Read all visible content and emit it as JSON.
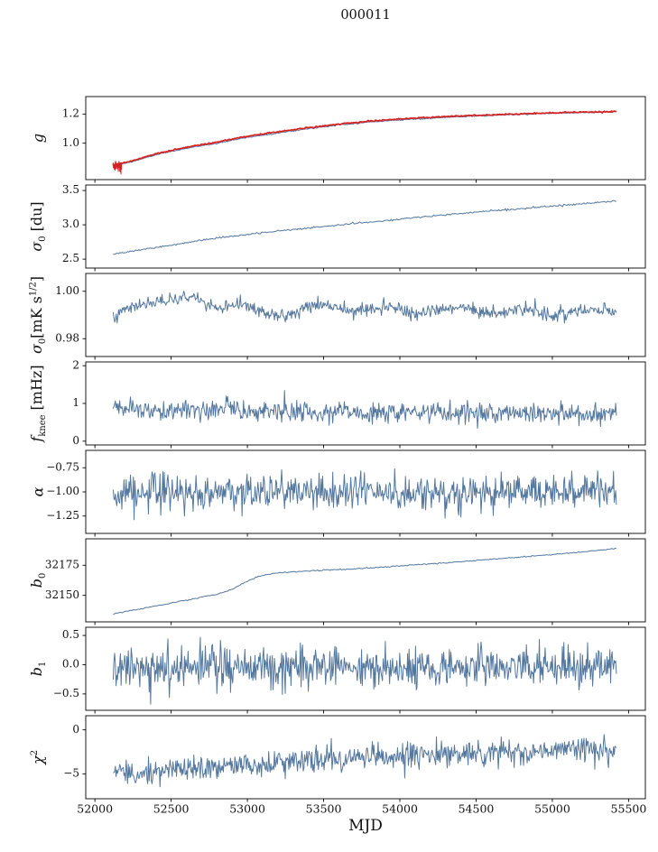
{
  "chart_data": {
    "type": "line",
    "title": "000011",
    "xlabel": "MJD",
    "line_color": "#54779e",
    "fit_color": "#d62222",
    "xlim": [
      51940,
      55610
    ],
    "x_range": [
      52120,
      55420
    ],
    "xticks": [
      {
        "v": 52000,
        "label": "52000"
      },
      {
        "v": 52500,
        "label": "52500"
      },
      {
        "v": 53000,
        "label": "53000"
      },
      {
        "v": 53500,
        "label": "53500"
      },
      {
        "v": 54000,
        "label": "54000"
      },
      {
        "v": 54500,
        "label": "54500"
      },
      {
        "v": 55000,
        "label": "55000"
      },
      {
        "v": 55500,
        "label": "55500"
      }
    ],
    "panels": [
      {
        "ylabel": "g",
        "ylabel_parts": [
          [
            "g",
            "i"
          ]
        ],
        "ylim": [
          0.75,
          1.32
        ],
        "yticks": [
          {
            "v": 1.0,
            "label": "1.0"
          },
          {
            "v": 1.2,
            "label": "1.2"
          }
        ],
        "series": [
          {
            "name": "gain",
            "color": "#54779e",
            "lw": 1,
            "n": 500,
            "noise": 0.002,
            "trend": [
              [
                52130,
                0.845
              ],
              [
                52250,
                0.875
              ],
              [
                52400,
                0.92
              ],
              [
                52600,
                0.965
              ],
              [
                52800,
                1.0
              ],
              [
                53000,
                1.04
              ],
              [
                53200,
                1.07
              ],
              [
                53400,
                1.1
              ],
              [
                53600,
                1.125
              ],
              [
                53800,
                1.145
              ],
              [
                54000,
                1.16
              ],
              [
                54200,
                1.172
              ],
              [
                54400,
                1.182
              ],
              [
                54600,
                1.19
              ],
              [
                54800,
                1.198
              ],
              [
                55000,
                1.205
              ],
              [
                55200,
                1.21
              ],
              [
                55420,
                1.215
              ]
            ]
          },
          {
            "name": "gain-fit",
            "color": "#d62222",
            "lw": 1.7,
            "n": 500,
            "noise": 0.0022,
            "trend": [
              [
                52130,
                0.85
              ],
              [
                52250,
                0.882
              ],
              [
                52400,
                0.928
              ],
              [
                52600,
                0.972
              ],
              [
                52800,
                1.008
              ],
              [
                53000,
                1.048
              ],
              [
                53200,
                1.078
              ],
              [
                53400,
                1.107
              ],
              [
                53600,
                1.131
              ],
              [
                53800,
                1.151
              ],
              [
                54000,
                1.166
              ],
              [
                54200,
                1.178
              ],
              [
                54400,
                1.187
              ],
              [
                54600,
                1.195
              ],
              [
                54800,
                1.202
              ],
              [
                55000,
                1.208
              ],
              [
                55200,
                1.213
              ],
              [
                55420,
                1.218
              ]
            ]
          },
          {
            "name": "gain-start-scatter",
            "color": "#d62222",
            "lw": 1,
            "n": 70,
            "noise": 0.02,
            "x_range": [
              52118,
              52175
            ],
            "trend": [
              [
                52118,
                0.845
              ],
              [
                52175,
                0.845
              ]
            ]
          }
        ]
      },
      {
        "ylabel": "σ₀ [du]",
        "ylabel_parts": [
          [
            "σ",
            "i"
          ],
          [
            "0",
            "sub"
          ],
          [
            " [du]",
            "n"
          ]
        ],
        "ylim": [
          2.37,
          3.58
        ],
        "yticks": [
          {
            "v": 2.5,
            "label": "2.5"
          },
          {
            "v": 3.0,
            "label": "3.0"
          },
          {
            "v": 3.5,
            "label": "3.5"
          }
        ],
        "series": [
          {
            "name": "sigma0-du",
            "color": "#54779e",
            "lw": 1,
            "n": 450,
            "noise": 0.006,
            "trend": [
              [
                52130,
                2.575
              ],
              [
                52300,
                2.635
              ],
              [
                52500,
                2.705
              ],
              [
                52700,
                2.775
              ],
              [
                52900,
                2.835
              ],
              [
                53100,
                2.885
              ],
              [
                53300,
                2.93
              ],
              [
                53500,
                2.975
              ],
              [
                53700,
                3.02
              ],
              [
                53900,
                3.06
              ],
              [
                54100,
                3.105
              ],
              [
                54300,
                3.145
              ],
              [
                54500,
                3.185
              ],
              [
                54700,
                3.22
              ],
              [
                54900,
                3.255
              ],
              [
                55100,
                3.29
              ],
              [
                55300,
                3.325
              ],
              [
                55420,
                3.345
              ]
            ]
          }
        ]
      },
      {
        "ylabel": "σ₀ [mK s¹⁄²]",
        "ylabel_parts": [
          [
            "σ",
            "i"
          ],
          [
            "0",
            "sub"
          ],
          [
            "[mK s",
            "n"
          ],
          [
            "1/2",
            "sup"
          ],
          [
            "]",
            "n"
          ]
        ],
        "ylim": [
          0.9725,
          1.0075
        ],
        "yticks": [
          {
            "v": 0.98,
            "label": "0.98"
          },
          {
            "v": 1.0,
            "label": "1.00"
          }
        ],
        "series": [
          {
            "name": "sigma0-mk",
            "color": "#54779e",
            "lw": 1,
            "n": 650,
            "noise": 0.0014,
            "trend": [
              [
                52130,
                0.9895
              ],
              [
                52250,
                0.9935
              ],
              [
                52420,
                0.995
              ],
              [
                52600,
                0.998
              ],
              [
                52700,
                0.9955
              ],
              [
                52780,
                0.9925
              ],
              [
                52900,
                0.9935
              ],
              [
                53000,
                0.9945
              ],
              [
                53120,
                0.9905
              ],
              [
                53250,
                0.99
              ],
              [
                53400,
                0.9935
              ],
              [
                53520,
                0.9945
              ],
              [
                53650,
                0.9915
              ],
              [
                53800,
                0.9925
              ],
              [
                53950,
                0.9935
              ],
              [
                54100,
                0.99
              ],
              [
                54250,
                0.9925
              ],
              [
                54400,
                0.9935
              ],
              [
                54550,
                0.9905
              ],
              [
                54700,
                0.9915
              ],
              [
                54850,
                0.9925
              ],
              [
                55000,
                0.9895
              ],
              [
                55150,
                0.9915
              ],
              [
                55300,
                0.9925
              ],
              [
                55420,
                0.9905
              ]
            ]
          }
        ]
      },
      {
        "ylabel": "fₖₙₑₑ [mHz]",
        "ylabel_parts": [
          [
            "f",
            "i"
          ],
          [
            "knee",
            "sub"
          ],
          [
            " [mHz]",
            "n"
          ]
        ],
        "ylim": [
          -0.1,
          2.1
        ],
        "yticks": [
          {
            "v": 0,
            "label": "0"
          },
          {
            "v": 1,
            "label": "1"
          },
          {
            "v": 2,
            "label": "2"
          }
        ],
        "series": [
          {
            "name": "fknee",
            "color": "#54779e",
            "lw": 1,
            "n": 700,
            "noise": 0.13,
            "trend": [
              [
                52130,
                0.85
              ],
              [
                52400,
                0.82
              ],
              [
                52700,
                0.82
              ],
              [
                52855,
                0.82
              ],
              [
                52868,
                1.3
              ],
              [
                52882,
                0.82
              ],
              [
                53200,
                0.78
              ],
              [
                54000,
                0.76
              ],
              [
                55000,
                0.73
              ],
              [
                55420,
                0.72
              ]
            ]
          }
        ]
      },
      {
        "ylabel": "α",
        "ylabel_parts": [
          [
            "α",
            "i"
          ]
        ],
        "ylim": [
          -1.43,
          -0.57
        ],
        "yticks": [
          {
            "v": -1.25,
            "label": "−1.25"
          },
          {
            "v": -1.0,
            "label": "−1.00"
          },
          {
            "v": -0.75,
            "label": "−0.75"
          }
        ],
        "series": [
          {
            "name": "alpha",
            "color": "#54779e",
            "lw": 1,
            "n": 700,
            "noise": 0.09,
            "trend": [
              [
                52130,
                -1.0
              ],
              [
                55420,
                -1.0
              ]
            ]
          }
        ]
      },
      {
        "ylabel": "b₀",
        "ylabel_parts": [
          [
            "b",
            "i"
          ],
          [
            "0",
            "sub"
          ]
        ],
        "ylim": [
          32128,
          32197
        ],
        "yticks": [
          {
            "v": 32150,
            "label": "32150"
          },
          {
            "v": 32175,
            "label": "32175"
          }
        ],
        "series": [
          {
            "name": "b0",
            "color": "#54779e",
            "lw": 1,
            "n": 400,
            "noise": 0.25,
            "trend": [
              [
                52130,
                32135
              ],
              [
                52350,
                32140
              ],
              [
                52600,
                32146
              ],
              [
                52800,
                32151
              ],
              [
                52900,
                32155
              ],
              [
                53000,
                32162
              ],
              [
                53080,
                32166
              ],
              [
                53180,
                32168.5
              ],
              [
                53350,
                32170
              ],
              [
                53700,
                32172
              ],
              [
                54000,
                32174.5
              ],
              [
                54300,
                32177
              ],
              [
                54600,
                32180
              ],
              [
                54900,
                32183
              ],
              [
                55150,
                32185.5
              ],
              [
                55420,
                32189
              ]
            ]
          }
        ]
      },
      {
        "ylabel": "b₁",
        "ylabel_parts": [
          [
            "b",
            "i"
          ],
          [
            "1",
            "sub"
          ]
        ],
        "ylim": [
          -0.78,
          0.64
        ],
        "yticks": [
          {
            "v": -0.5,
            "label": "−0.5"
          },
          {
            "v": 0.0,
            "label": "0.0"
          },
          {
            "v": 0.5,
            "label": "0.5"
          }
        ],
        "series": [
          {
            "name": "b1",
            "color": "#54779e",
            "lw": 1,
            "n": 700,
            "noise": 0.17,
            "trend": [
              [
                52130,
                -0.05
              ],
              [
                55420,
                -0.05
              ]
            ]
          }
        ]
      },
      {
        "ylabel": "χ²",
        "ylabel_parts": [
          [
            "χ",
            "i"
          ],
          [
            "2",
            "sup"
          ]
        ],
        "ylim": [
          -7.8,
          1.6
        ],
        "yticks": [
          {
            "v": -5,
            "label": "−5"
          },
          {
            "v": 0,
            "label": "0"
          }
        ],
        "series": [
          {
            "name": "chi2",
            "color": "#54779e",
            "lw": 1,
            "n": 700,
            "noise": 0.75,
            "trend": [
              [
                52130,
                -4.6
              ],
              [
                52300,
                -5.0
              ],
              [
                52500,
                -4.6
              ],
              [
                52700,
                -4.3
              ],
              [
                52900,
                -4.0
              ],
              [
                53100,
                -3.8
              ],
              [
                53300,
                -3.6
              ],
              [
                53600,
                -3.3
              ],
              [
                54000,
                -2.9
              ],
              [
                54400,
                -2.7
              ],
              [
                54800,
                -2.5
              ],
              [
                55100,
                -2.4
              ],
              [
                55420,
                -2.3
              ]
            ]
          }
        ]
      }
    ]
  }
}
